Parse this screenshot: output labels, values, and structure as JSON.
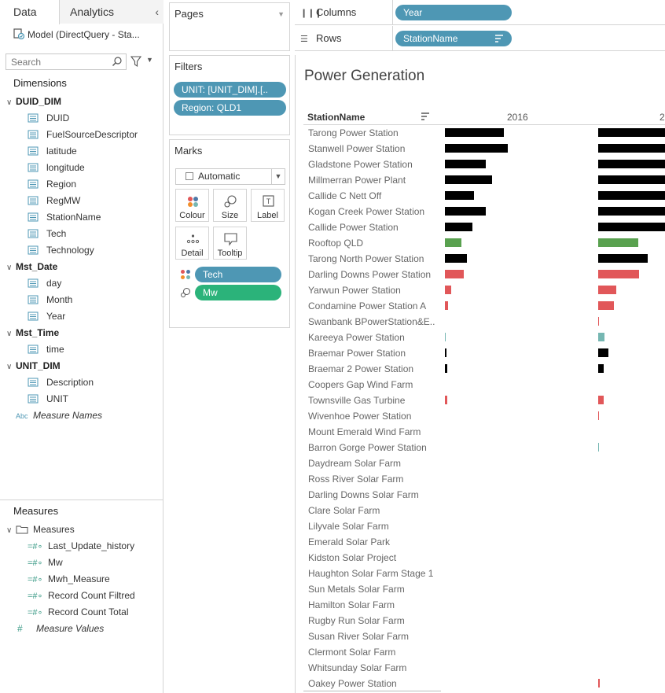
{
  "left_pane": {
    "tabs": {
      "data": "Data",
      "analytics": "Analytics"
    },
    "datasource": "Model (DirectQuery - Sta...",
    "search_placeholder": "Search",
    "dimensions_heading": "Dimensions",
    "measures_heading": "Measures",
    "dimension_folders": [
      {
        "name": "DUID_DIM",
        "fields": [
          "DUID",
          "FuelSourceDescriptor",
          "latitude",
          "longitude",
          "Region",
          "RegMW",
          "StationName",
          "Tech",
          "Technology"
        ]
      },
      {
        "name": "Mst_Date",
        "fields": [
          "day",
          "Month",
          "Year"
        ]
      },
      {
        "name": "Mst_Time",
        "fields": [
          "time"
        ]
      },
      {
        "name": "UNIT_DIM",
        "fields": [
          "Description",
          "UNIT"
        ]
      }
    ],
    "measure_names": "Measure Names",
    "measure_names_type": "Abc",
    "measure_folder": "Measures",
    "measure_fields": [
      "Last_Update_history",
      "Mw",
      "Mwh_Measure",
      "Record Count Filtred",
      "Record Count Total"
    ],
    "measure_values": "Measure Values"
  },
  "shelves": {
    "pages_title": "Pages",
    "filters_title": "Filters",
    "filters": [
      "UNIT: [UNIT_DIM].[..",
      "Region: QLD1"
    ],
    "marks_title": "Marks",
    "mark_type": "Automatic",
    "mark_buttons": [
      "Colour",
      "Size",
      "Label",
      "Detail",
      "Tooltip"
    ],
    "mark_pills": [
      "Tech",
      "Mw"
    ],
    "columns_label": "Columns",
    "columns_pill": "Year",
    "rows_label": "Rows",
    "rows_pill": "StationName"
  },
  "viz": {
    "title": "Power Generation",
    "row_header": "StationName",
    "column_headers": [
      "2016",
      "2"
    ]
  },
  "colors": {
    "pill_blue": "#4e97b4",
    "pill_green": "#2bb37a",
    "bar_black": "#000000",
    "bar_green": "#59a14f",
    "bar_red": "#e15759",
    "bar_teal": "#76b7b2"
  },
  "chart_data": {
    "type": "bar",
    "categories": [
      "Tarong Power Station",
      "Stanwell Power Station",
      "Gladstone Power Station",
      "Millmerran Power Plant",
      "Callide C Nett Off",
      "Kogan Creek Power Station",
      "Callide Power Station",
      "Rooftop QLD",
      "Tarong North Power Station",
      "Darling Downs Power Station",
      "Yarwun Power Station",
      "Condamine Power Station A",
      "Swanbank BPowerStation&E..",
      "Kareeya Power Station",
      "Braemar Power Station",
      "Braemar 2 Power Station",
      "Coopers Gap Wind Farm",
      "Townsville Gas Turbine",
      "Wivenhoe Power Station",
      "Mount Emerald Wind Farm",
      "Barron Gorge Power Station",
      "Daydream Solar Farm",
      "Ross River Solar Farm",
      "Darling Downs Solar Farm",
      "Clare Solar Farm",
      "Lilyvale Solar Farm",
      "Emerald Solar Park",
      "Kidston Solar Project",
      "Haughton Solar Farm Stage 1",
      "Sun Metals Solar Farm",
      "Hamilton Solar Farm",
      "Rugby Run Solar Farm",
      "Susan River Solar Farm",
      "Clermont Solar Farm",
      "Whitsunday Solar Farm",
      "Oakey Power Station"
    ],
    "bar_colors": [
      "#000000",
      "#000000",
      "#000000",
      "#000000",
      "#000000",
      "#000000",
      "#000000",
      "#59a14f",
      "#000000",
      "#e15759",
      "#e15759",
      "#e15759",
      "#e15759",
      "#76b7b2",
      "#000000",
      "#000000",
      "#000000",
      "#e15759",
      "#e15759",
      "#76b7b2",
      "#76b7b2",
      "#000000",
      "#000000",
      "#000000",
      "#000000",
      "#000000",
      "#000000",
      "#000000",
      "#000000",
      "#000000",
      "#000000",
      "#000000",
      "#000000",
      "#000000",
      "#000000",
      "#e15759"
    ],
    "series": [
      {
        "name": "2016",
        "values": [
          74,
          79,
          51,
          59,
          37,
          51,
          35,
          21,
          28,
          24,
          8,
          4,
          0,
          1,
          2,
          3,
          0,
          3,
          0,
          0,
          0,
          0,
          0,
          0,
          0,
          0,
          0,
          0,
          0,
          0,
          0,
          0,
          0,
          0,
          0,
          0
        ]
      },
      {
        "name": "2",
        "values": [
          85,
          85,
          85,
          85,
          85,
          85,
          85,
          50,
          62,
          51,
          23,
          20,
          1,
          8,
          13,
          7,
          0,
          7,
          1,
          0,
          1,
          0,
          0,
          0,
          0,
          0,
          0,
          0,
          0,
          0,
          0,
          0,
          0,
          0,
          0,
          2
        ]
      }
    ],
    "xlabel": "",
    "ylabel": ""
  }
}
